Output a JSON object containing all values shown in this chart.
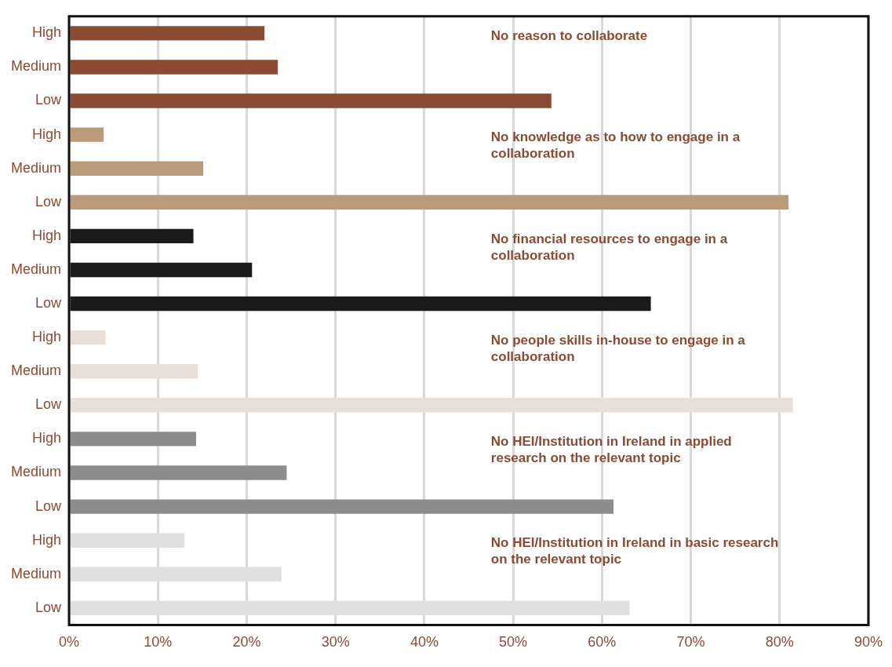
{
  "chart_data": {
    "type": "bar",
    "orientation": "horizontal",
    "categories": [
      "High",
      "Medium",
      "Low",
      "High",
      "Medium",
      "Low",
      "High",
      "Medium",
      "Low",
      "High",
      "Medium",
      "Low",
      "High",
      "Medium",
      "Low",
      "High",
      "Medium",
      "Low"
    ],
    "values": [
      22.0,
      23.5,
      54.3,
      3.9,
      15.1,
      81.0,
      14.0,
      20.6,
      65.5,
      4.1,
      14.5,
      81.5,
      14.3,
      24.5,
      61.3,
      13.0,
      23.9,
      63.1
    ],
    "colors": [
      "#8b4a32",
      "#8b4a32",
      "#8b4a32",
      "#b99a7a",
      "#b99a7a",
      "#b99a7a",
      "#1a1a1a",
      "#1a1a1a",
      "#1a1a1a",
      "#e8e0d8",
      "#e8e0d8",
      "#e8e0d8",
      "#8c8c8c",
      "#8c8c8c",
      "#8c8c8c",
      "#e0e0e0",
      "#e0e0e0",
      "#e0e0e0"
    ],
    "xlim": [
      0,
      90
    ],
    "xticks": [
      {
        "value": 0,
        "label": "0%"
      },
      {
        "value": 10,
        "label": "10%"
      },
      {
        "value": 20,
        "label": "20%"
      },
      {
        "value": 30,
        "label": "30%"
      },
      {
        "value": 40,
        "label": "40%"
      },
      {
        "value": 50,
        "label": "50%"
      },
      {
        "value": 60,
        "label": "60%"
      },
      {
        "value": 70,
        "label": "70%"
      },
      {
        "value": 80,
        "label": "80%"
      },
      {
        "value": 90,
        "label": "90%"
      }
    ],
    "grid": "x",
    "annotations": [
      "No reason to collaborate",
      "No knowledge as to how to engage in a collaboration",
      "No financial resources to engage in a collaboration",
      "No people skills in-house to engage in a collaboration",
      "No HEI/Institution in Ireland in applied research on the relevant topic",
      "No HEI/Institution in Ireland in basic research on the relevant topic"
    ]
  }
}
